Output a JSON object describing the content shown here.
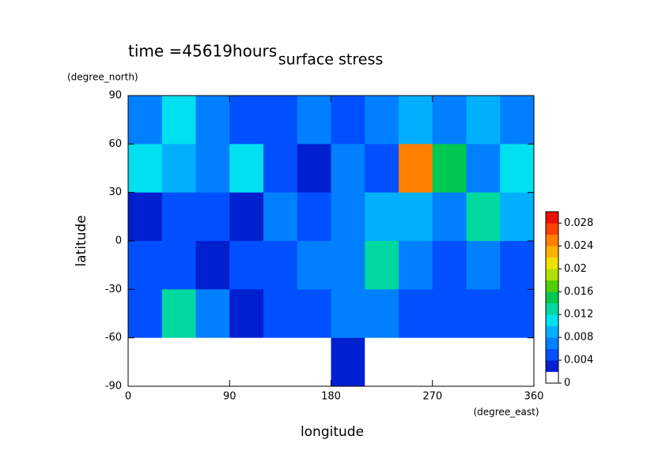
{
  "chart_data": {
    "type": "contour",
    "title": "surface stress",
    "subtitle": "time =45619hours",
    "x_label": "longitude",
    "x_units": "(degree_east)",
    "y_label": "latitude",
    "y_units": "(degree_north)",
    "xlim": [
      0,
      360
    ],
    "xticks": [
      0,
      90,
      180,
      270,
      360
    ],
    "ylim": [
      -90,
      90
    ],
    "yticks": [
      -90,
      -60,
      -30,
      0,
      30,
      60,
      90
    ],
    "z": [
      [
        0.006,
        0.01,
        0.006,
        0.004,
        0.004,
        0.006,
        0.004,
        0.006,
        0.008,
        0.006,
        0.008,
        0.006
      ],
      [
        0.01,
        0.008,
        0.006,
        0.01,
        0.004,
        0.002,
        0.006,
        0.004,
        0.024,
        0.014,
        0.006,
        0.01
      ],
      [
        0.002,
        0.004,
        0.004,
        0.002,
        0.006,
        0.004,
        0.006,
        0.008,
        0.008,
        0.006,
        0.012,
        0.008
      ],
      [
        0.004,
        0.004,
        0.002,
        0.004,
        0.004,
        0.006,
        0.006,
        0.012,
        0.006,
        0.004,
        0.006,
        0.004
      ],
      [
        0.004,
        0.012,
        0.006,
        0.002,
        0.004,
        0.004,
        0.006,
        0.006,
        0.004,
        0.004,
        0.004,
        0.004
      ],
      [
        0,
        0,
        0,
        0,
        0,
        0,
        0.002,
        0,
        0,
        0,
        0,
        0
      ]
    ],
    "clim": [
      0,
      0.03
    ],
    "cticks": [
      0,
      0.004,
      0.008,
      0.012,
      0.016,
      0.02,
      0.024,
      0.028
    ],
    "colors": [
      "#ffffff",
      "#0020d0",
      "#0050ff",
      "#0080ff",
      "#00b0ff",
      "#00e0f0",
      "#00d8a0",
      "#00c850",
      "#50d000",
      "#b0e000",
      "#f0e000",
      "#ffb000",
      "#ff8000",
      "#ff4000",
      "#e81000"
    ]
  }
}
